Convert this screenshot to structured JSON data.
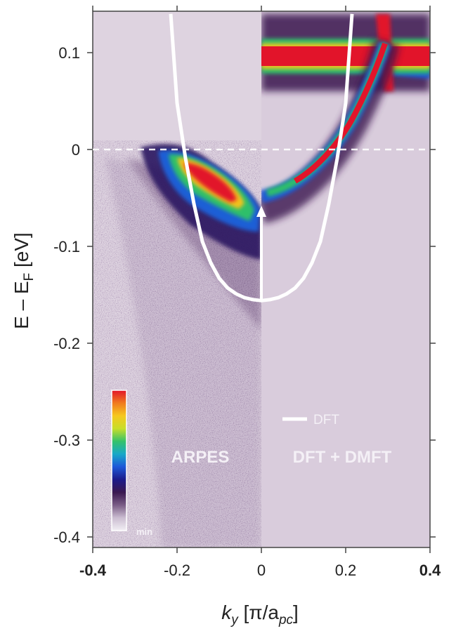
{
  "chart_data": {
    "type": "heatmap",
    "title": "",
    "xlabel": {
      "prefix": "k",
      "sub": "y",
      "mid": " [π/a",
      "sub2": "pc",
      "suffix": "]"
    },
    "ylabel": {
      "prefix": "E – E",
      "sub": "F",
      "suffix": " [eV]"
    },
    "xlim": [
      -0.4,
      0.4
    ],
    "ylim": [
      -0.41,
      0.14
    ],
    "x_ticks": [
      {
        "value": -0.4,
        "label": "-0.4",
        "bold": true
      },
      {
        "value": -0.2,
        "label": "-0.2",
        "bold": false
      },
      {
        "value": 0,
        "label": "0",
        "bold": false
      },
      {
        "value": 0.2,
        "label": "0.2",
        "bold": false
      },
      {
        "value": 0.4,
        "label": "0.4",
        "bold": true
      }
    ],
    "y_ticks": [
      {
        "value": 0.1,
        "label": "0.1"
      },
      {
        "value": 0,
        "label": "0"
      },
      {
        "value": -0.1,
        "label": "-0.1"
      },
      {
        "value": -0.2,
        "label": "-0.2"
      },
      {
        "value": -0.3,
        "label": "-0.3"
      },
      {
        "value": -0.4,
        "label": "-0.4"
      }
    ],
    "fermi_level": 0,
    "panels": [
      {
        "name": "ARPES",
        "x_range": [
          -0.4,
          0
        ]
      },
      {
        "name": "DFT + DMFT",
        "x_range": [
          0,
          0.4
        ]
      }
    ],
    "series": [
      {
        "name": "DFT",
        "type": "line",
        "color": "#ffffff",
        "x": [
          -0.215,
          -0.2,
          -0.18,
          -0.16,
          -0.14,
          -0.12,
          -0.1,
          -0.08,
          -0.06,
          -0.04,
          -0.02,
          0,
          0.02,
          0.04,
          0.06,
          0.08,
          0.1,
          0.12,
          0.14,
          0.16,
          0.18,
          0.2,
          0.215
        ],
        "y": [
          0.14,
          0.048,
          -0.009,
          -0.056,
          -0.095,
          -0.117,
          -0.133,
          -0.143,
          -0.149,
          -0.153,
          -0.155,
          -0.156,
          -0.155,
          -0.153,
          -0.149,
          -0.143,
          -0.133,
          -0.117,
          -0.095,
          -0.056,
          -0.009,
          0.048,
          0.14
        ]
      }
    ],
    "annotations": [
      {
        "type": "arrow",
        "x": 0,
        "from_y": -0.156,
        "to_y": -0.058,
        "color": "#ffffff"
      }
    ],
    "colorbar": {
      "colors": [
        "#f2eff4",
        "#cbbdd1",
        "#7a5d86",
        "#3a1850",
        "#1b1a8a",
        "#1d58d8",
        "#18a8c8",
        "#35c26a",
        "#c8de2a",
        "#f6c81e",
        "#f07a1e",
        "#e2142a"
      ],
      "min_label": "min"
    },
    "colors": {
      "background": "#dccfde",
      "dft_line": "#ffffff",
      "band_max": "#e2142a"
    }
  }
}
